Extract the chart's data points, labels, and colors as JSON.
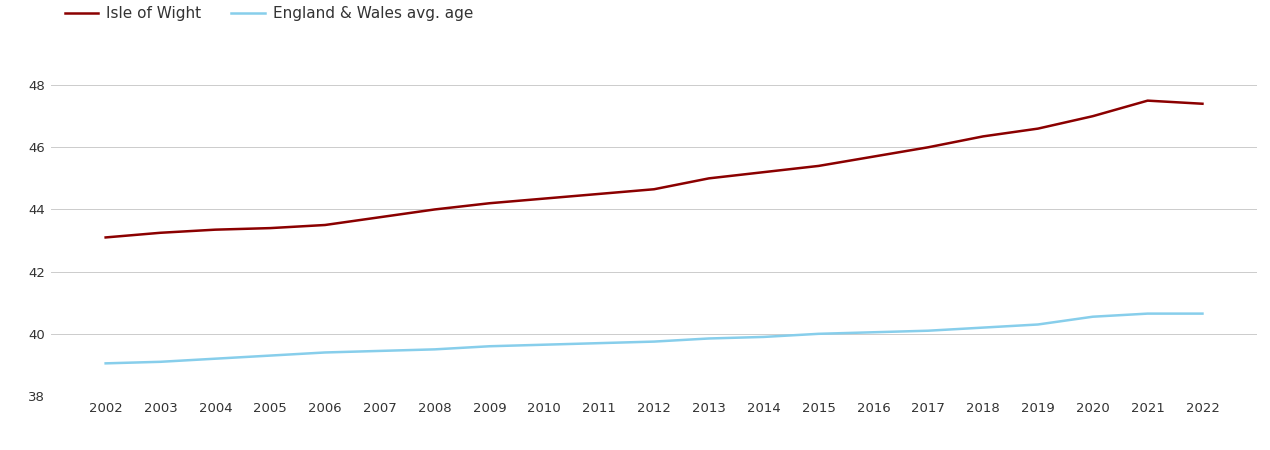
{
  "years": [
    2002,
    2003,
    2004,
    2005,
    2006,
    2007,
    2008,
    2009,
    2010,
    2011,
    2012,
    2013,
    2014,
    2015,
    2016,
    2017,
    2018,
    2019,
    2020,
    2021,
    2022
  ],
  "isle_of_wight": [
    43.1,
    43.25,
    43.35,
    43.4,
    43.5,
    43.75,
    44.0,
    44.2,
    44.35,
    44.5,
    44.65,
    45.0,
    45.2,
    45.4,
    45.7,
    46.0,
    46.35,
    46.6,
    47.0,
    47.5,
    47.4
  ],
  "england_wales": [
    39.05,
    39.1,
    39.2,
    39.3,
    39.4,
    39.45,
    39.5,
    39.6,
    39.65,
    39.7,
    39.75,
    39.85,
    39.9,
    40.0,
    40.05,
    40.1,
    40.2,
    40.3,
    40.55,
    40.65,
    40.65
  ],
  "iow_color": "#8B0000",
  "ew_color": "#87CEEB",
  "iow_label": "Isle of Wight",
  "ew_label": "England & Wales avg. age",
  "ylim": [
    38,
    49
  ],
  "yticks": [
    38,
    40,
    42,
    44,
    46,
    48
  ],
  "background_color": "#ffffff",
  "grid_color": "#cccccc",
  "tick_color": "#333333",
  "line_width": 1.8,
  "legend_fontsize": 11,
  "tick_fontsize": 9.5
}
